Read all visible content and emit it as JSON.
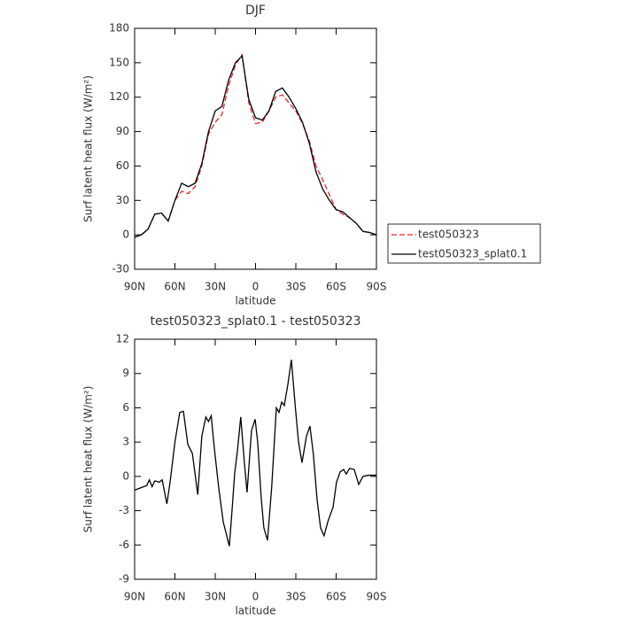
{
  "chart_data": [
    {
      "type": "line",
      "title": "DJF",
      "xlabel": "latitude",
      "ylabel": "Surf latent heat flux (W/m²)",
      "x": [
        90,
        85,
        80,
        75,
        70,
        65,
        60,
        55,
        50,
        45,
        40,
        35,
        30,
        25,
        20,
        15,
        10,
        5,
        0,
        -5,
        -10,
        -15,
        -20,
        -25,
        -30,
        -35,
        -40,
        -45,
        -50,
        -55,
        -60,
        -65,
        -70,
        -75,
        -80,
        -85,
        -90
      ],
      "series": [
        {
          "name": "test050323",
          "color": "#e8262b",
          "line_style": "dashed",
          "values": [
            -2,
            0,
            5,
            18,
            19,
            12,
            30,
            38,
            36,
            42,
            60,
            88,
            98,
            105,
            130,
            148,
            157,
            115,
            97,
            98,
            108,
            120,
            122,
            115,
            108,
            97,
            82,
            60,
            48,
            35,
            22,
            18,
            15,
            10,
            3,
            2,
            0
          ]
        },
        {
          "name": "test050323_splat0.1",
          "color": "#000000",
          "line_style": "solid",
          "values": [
            -2,
            0,
            5,
            18,
            19,
            12,
            30,
            45,
            42,
            45,
            62,
            90,
            108,
            112,
            135,
            150,
            156,
            118,
            102,
            100,
            108,
            125,
            128,
            120,
            110,
            98,
            80,
            55,
            40,
            30,
            22,
            20,
            15,
            10,
            3,
            2,
            0
          ]
        }
      ],
      "xlim": [
        90,
        -90
      ],
      "xticks": [
        {
          "value": 90,
          "label": "90N"
        },
        {
          "value": 60,
          "label": "60N"
        },
        {
          "value": 30,
          "label": "30N"
        },
        0,
        {
          "value": -30,
          "label": "30S"
        },
        {
          "value": -60,
          "label": "60S"
        },
        {
          "value": -90,
          "label": "90S"
        }
      ],
      "ylim": [
        -30,
        180
      ],
      "yticks": [
        -30,
        0,
        30,
        60,
        90,
        120,
        150,
        180
      ],
      "legend": "outside-right"
    },
    {
      "type": "line",
      "title": "test050323_splat0.1 - test050323",
      "xlabel": "latitude",
      "ylabel": "Surf latent heat flux (W/m²)",
      "x": [
        90,
        81,
        79,
        77,
        75,
        71.5,
        69.5,
        66,
        63.6,
        60,
        56.4,
        53.7,
        50.4,
        47,
        43,
        40,
        37,
        35,
        33,
        30.7,
        27.4,
        24,
        19.5,
        17.5,
        15.5,
        13.5,
        11,
        8.3,
        6.3,
        3,
        0.3,
        -1.6,
        -4.3,
        -6.2,
        -8.9,
        -12,
        -15.5,
        -17.5,
        -19.5,
        -21.4,
        -24,
        -26.7,
        -29.3,
        -32,
        -34.6,
        -37.9,
        -40.5,
        -43,
        -45.8,
        -48.4,
        -51,
        -54,
        -57.7,
        -60.3,
        -63,
        -65.6,
        -67.5,
        -70,
        -73.5,
        -76.8,
        -80,
        -84,
        -90
      ],
      "values": [
        -1.2,
        -0.8,
        -0.3,
        -0.9,
        -0.4,
        -0.5,
        -0.3,
        -2.4,
        -0.5,
        3,
        5.6,
        5.7,
        2.8,
        2,
        -1.6,
        3.5,
        5.2,
        4.8,
        5.3,
        2.5,
        -1,
        -4,
        -6.1,
        -3,
        0.3,
        2.2,
        5.2,
        1.2,
        -1.4,
        4,
        5,
        3,
        -2,
        -4.5,
        -5.6,
        -1,
        6,
        5.6,
        6.5,
        6.2,
        8,
        10.2,
        6.5,
        3,
        1.2,
        3.5,
        4.4,
        2,
        -2,
        -4.5,
        -5.2,
        -3.9,
        -2.7,
        -0.5,
        0.4,
        0.6,
        0.2,
        0.7,
        0.6,
        -0.7,
        0,
        0.1,
        0.1
      ],
      "color": "#000000",
      "xlim": [
        90,
        -90
      ],
      "xticks": [
        {
          "value": 90,
          "label": "90N"
        },
        {
          "value": 60,
          "label": "60N"
        },
        {
          "value": 30,
          "label": "30N"
        },
        0,
        {
          "value": -30,
          "label": "30S"
        },
        {
          "value": -60,
          "label": "60S"
        },
        {
          "value": -90,
          "label": "90S"
        }
      ],
      "ylim": [
        -9,
        12
      ],
      "yticks": [
        -9,
        -6,
        -3,
        0,
        3,
        6,
        9,
        12
      ]
    }
  ]
}
